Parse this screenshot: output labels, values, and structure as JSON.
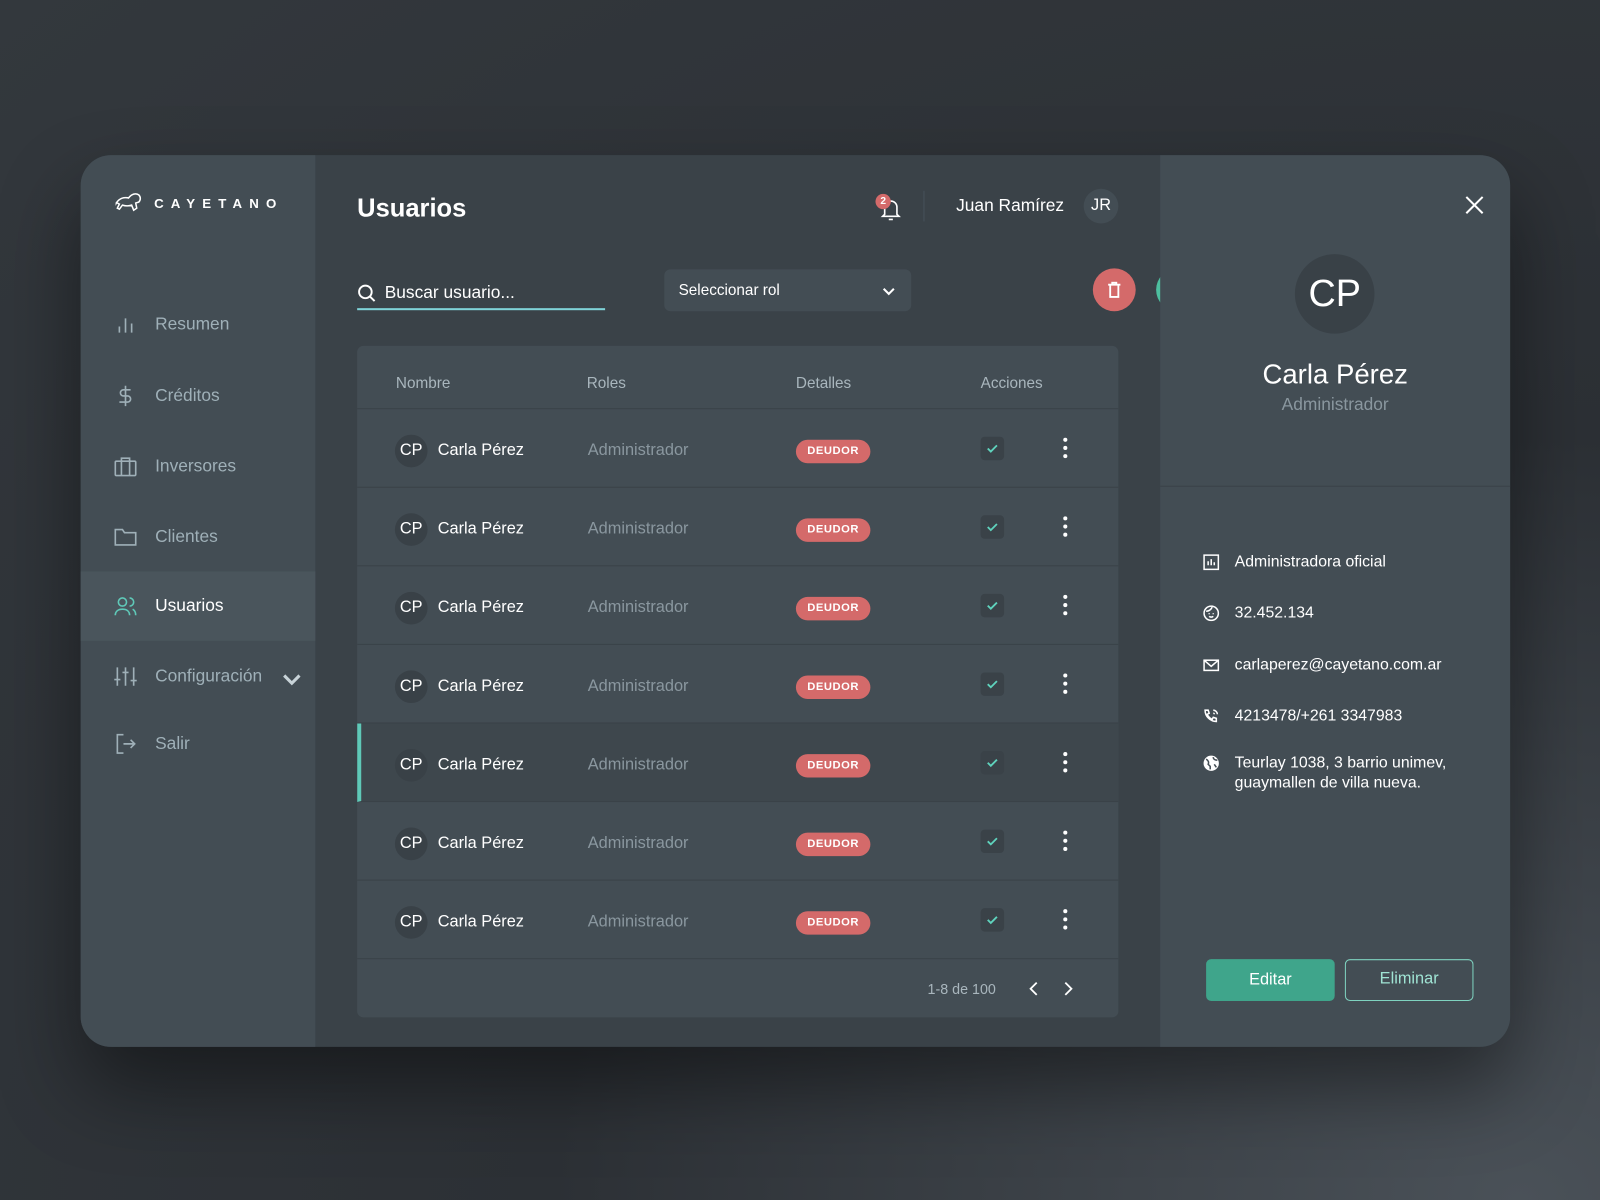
{
  "brand": {
    "name": "CAYETANO"
  },
  "sidebar": {
    "items": [
      {
        "label": "Resumen",
        "icon": "bar-chart-icon"
      },
      {
        "label": "Créditos",
        "icon": "dollar-icon"
      },
      {
        "label": "Inversores",
        "icon": "briefcase-icon"
      },
      {
        "label": "Clientes",
        "icon": "folder-icon"
      },
      {
        "label": "Usuarios",
        "icon": "users-icon",
        "active": true
      },
      {
        "label": "Configuración",
        "icon": "sliders-icon"
      },
      {
        "label": "Salir",
        "icon": "logout-icon"
      }
    ]
  },
  "header": {
    "title": "Usuarios",
    "notifications": "2",
    "user_name": "Juan Ramírez",
    "user_initials": "JR"
  },
  "toolbar": {
    "search_placeholder": "Buscar usuario...",
    "role_select": "Seleccionar rol",
    "add_label": "+"
  },
  "table": {
    "columns": [
      "Nombre",
      "Roles",
      "Detalles",
      "Acciones"
    ],
    "rows": [
      {
        "initials": "CP",
        "name": "Carla Pérez",
        "role": "Administrador",
        "status": "DEUDOR",
        "checked": true
      },
      {
        "initials": "CP",
        "name": "Carla Pérez",
        "role": "Administrador",
        "status": "DEUDOR",
        "checked": true
      },
      {
        "initials": "CP",
        "name": "Carla Pérez",
        "role": "Administrador",
        "status": "DEUDOR",
        "checked": true
      },
      {
        "initials": "CP",
        "name": "Carla Pérez",
        "role": "Administrador",
        "status": "DEUDOR",
        "checked": true
      },
      {
        "initials": "CP",
        "name": "Carla Pérez",
        "role": "Administrador",
        "status": "DEUDOR",
        "checked": true,
        "selected": true
      },
      {
        "initials": "CP",
        "name": "Carla Pérez",
        "role": "Administrador",
        "status": "DEUDOR",
        "checked": true
      },
      {
        "initials": "CP",
        "name": "Carla Pérez",
        "role": "Administrador",
        "status": "DEUDOR",
        "checked": true
      }
    ],
    "pagination": "1-8 de 100"
  },
  "detail": {
    "initials": "CP",
    "name": "Carla Pérez",
    "role": "Administrador",
    "info": [
      {
        "icon": "report-icon",
        "text": "Administradora oficial"
      },
      {
        "icon": "face-icon",
        "text": "32.452.134"
      },
      {
        "icon": "mail-icon",
        "text": "carlaperez@cayetano.com.ar"
      },
      {
        "icon": "phone-icon",
        "text": "4213478/+261 3347983"
      },
      {
        "icon": "globe-icon",
        "text": "Teurlay 1038, 3 barrio unimev, guaymallen de villa nueva."
      }
    ],
    "edit_label": "Editar",
    "delete_label": "Eliminar"
  },
  "colors": {
    "accent": "#4dbf9f",
    "danger": "#d46a6a",
    "panel": "#434d54",
    "main": "#3a4248"
  }
}
